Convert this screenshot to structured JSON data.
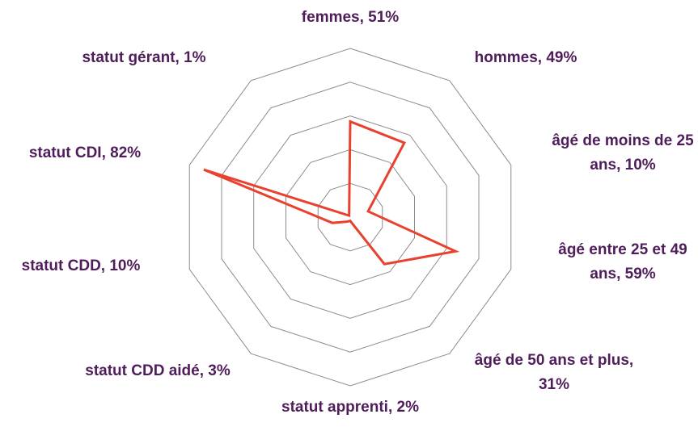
{
  "chart_data": {
    "type": "radar",
    "categories": [
      "femmes, 51%",
      "hommes, 49%",
      "âgé de moins de 25 ans, 10%",
      "âgé entre 25 et 49 ans, 59%",
      "âgé de 50 ans et plus, 31%",
      "statut apprenti, 2%",
      "statut CDD aidé, 3%",
      "statut CDD, 10%",
      "statut CDI, 82%",
      "statut gérant, 1%"
    ],
    "values": [
      51,
      49,
      10,
      59,
      31,
      2,
      3,
      10,
      82,
      1
    ],
    "color": "#e8412e",
    "ylim": [
      0,
      90
    ],
    "yticks": [
      0,
      18,
      36,
      54,
      72,
      90
    ],
    "grid": true
  }
}
